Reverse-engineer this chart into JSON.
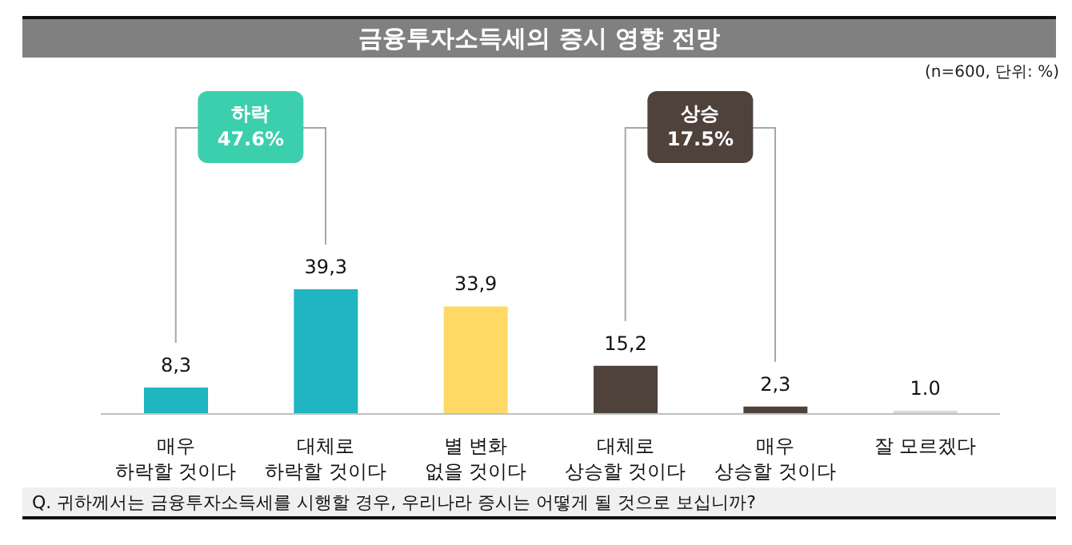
{
  "chart_data": {
    "type": "bar",
    "title": "금융투자소득세의 증시 영향 전망",
    "subtitle": "(n=600, 단위: %)",
    "categories": [
      "매우\n하락할 것이다",
      "대체로\n하락할 것이다",
      "별 변화\n없을 것이다",
      "대체로\n상승할 것이다",
      "매우\n상승할 것이다",
      "잘 모르겠다"
    ],
    "values": [
      8.3,
      39.3,
      33.9,
      15.2,
      2.3,
      1.0
    ],
    "value_labels": [
      "8,3",
      "39,3",
      "33,9",
      "15,2",
      "2,3",
      "1.0"
    ],
    "colors": [
      "#1fb5c1",
      "#1fb5c1",
      "#ffd966",
      "#4e423b",
      "#4e423b",
      "#d9d9d9"
    ],
    "annotations": [
      "하락\n47.6%",
      "상승\n17.5%",
      "Q. 귀하께서는 금융투자소득세를 시행할 경우, 우리나라 증시는 어떻게 될 것으로 보십니까?"
    ],
    "grid": false,
    "legend": false
  }
}
